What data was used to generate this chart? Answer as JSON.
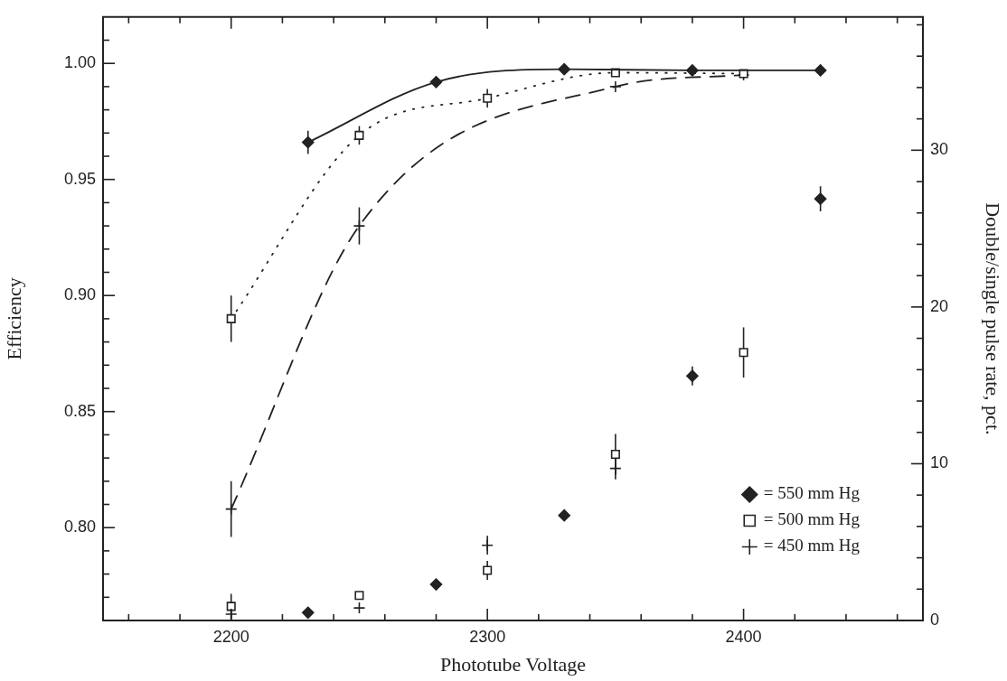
{
  "chart_data": {
    "type": "line",
    "xlabel": "Phototube Voltage",
    "ylabel": "Efficiency",
    "y2label": "Double/single pulse rate, pct.",
    "xlim": [
      2150,
      2470
    ],
    "xticks": [
      {
        "value": 2160,
        "label": null
      },
      {
        "value": 2180,
        "label": null
      },
      2200,
      {
        "value": 2220,
        "label": null
      },
      {
        "value": 2240,
        "label": null
      },
      {
        "value": 2260,
        "label": null
      },
      {
        "value": 2280,
        "label": null
      },
      2300,
      {
        "value": 2320,
        "label": null
      },
      {
        "value": 2340,
        "label": null
      },
      {
        "value": 2360,
        "label": null
      },
      {
        "value": 2380,
        "label": null
      },
      2400,
      {
        "value": 2420,
        "label": null
      },
      {
        "value": 2440,
        "label": null
      },
      {
        "value": 2460,
        "label": null
      }
    ],
    "ylim": [
      0.76,
      1.02
    ],
    "yticks": [
      {
        "value": 0.77,
        "label": null
      },
      {
        "value": 0.78,
        "label": null
      },
      {
        "value": 0.79,
        "label": null
      },
      {
        "value": 0.8,
        "label": "0.80"
      },
      {
        "value": 0.81,
        "label": null
      },
      {
        "value": 0.82,
        "label": null
      },
      {
        "value": 0.83,
        "label": null
      },
      {
        "value": 0.84,
        "label": null
      },
      0.85,
      {
        "value": 0.86,
        "label": null
      },
      {
        "value": 0.87,
        "label": null
      },
      {
        "value": 0.88,
        "label": null
      },
      {
        "value": 0.89,
        "label": null
      },
      {
        "value": 0.9,
        "label": "0.90"
      },
      {
        "value": 0.91,
        "label": null
      },
      {
        "value": 0.92,
        "label": null
      },
      {
        "value": 0.93,
        "label": null
      },
      {
        "value": 0.94,
        "label": null
      },
      0.95,
      {
        "value": 0.96,
        "label": null
      },
      {
        "value": 0.97,
        "label": null
      },
      {
        "value": 0.98,
        "label": null
      },
      {
        "value": 0.99,
        "label": null
      },
      {
        "value": 1,
        "label": "1.00"
      },
      {
        "value": 1.01,
        "label": null
      }
    ],
    "y2lim": [
      0,
      38.5
    ],
    "y2ticks": [
      0,
      {
        "value": 2,
        "label": null
      },
      {
        "value": 4,
        "label": null
      },
      {
        "value": 6,
        "label": null
      },
      {
        "value": 8,
        "label": null
      },
      10,
      {
        "value": 12,
        "label": null
      },
      {
        "value": 14,
        "label": null
      },
      {
        "value": 16,
        "label": null
      },
      {
        "value": 18,
        "label": null
      },
      20,
      {
        "value": 22,
        "label": null
      },
      {
        "value": 24,
        "label": null
      },
      {
        "value": 26,
        "label": null
      },
      {
        "value": 28,
        "label": null
      },
      30,
      {
        "value": 32,
        "label": null
      },
      {
        "value": 34,
        "label": null
      },
      {
        "value": 36,
        "label": null
      },
      {
        "value": 38,
        "label": null
      }
    ],
    "legend": "bottom right",
    "series": [
      {
        "name": "= 550 mm Hg",
        "color": "#222222",
        "marker": "diamond",
        "line_style": "solid",
        "x": [
          2230,
          2280,
          2330,
          2380,
          2430
        ],
        "values": [
          0.966,
          0.992,
          0.9975,
          0.997,
          0.997
        ],
        "errors": [
          0.005,
          null,
          null,
          null,
          null
        ]
      },
      {
        "name": "= 500 mm Hg",
        "color": "#222222",
        "marker": "square",
        "line_style": "dotted",
        "x": [
          2200,
          2250,
          2300,
          2350,
          2400
        ],
        "values": [
          0.89,
          0.969,
          0.985,
          0.996,
          0.9956
        ],
        "errors": [
          0.01,
          0.004,
          0.004,
          null,
          null
        ]
      },
      {
        "name": "= 450 mm Hg",
        "color": "#222222",
        "marker": "cross",
        "line_style": "dashed",
        "x": [
          2200,
          2250,
          2300,
          2350,
          2400
        ],
        "values": [
          0.808,
          0.93,
          null,
          0.99,
          0.995
        ],
        "errors": [
          0.012,
          0.008,
          null,
          null,
          null
        ]
      },
      {
        "type": "scatter",
        "axis": "y2",
        "color": "#222222",
        "marker": "diamond",
        "x": [
          2230,
          2280,
          2330,
          2380,
          2430
        ],
        "values": [
          0.5,
          2.3,
          6.7,
          15.6,
          26.9
        ],
        "errors": [
          null,
          null,
          null,
          0.6,
          0.8
        ]
      },
      {
        "type": "scatter",
        "axis": "y2",
        "color": "#222222",
        "marker": "square",
        "x": [
          2200,
          2250,
          2300,
          2350,
          2400
        ],
        "values": [
          0.9,
          1.6,
          3.2,
          10.6,
          17.1
        ],
        "errors": [
          0.8,
          null,
          0.6,
          1.3,
          1.6
        ]
      },
      {
        "type": "scatter",
        "axis": "y2",
        "color": "#222222",
        "marker": "cross",
        "x": [
          2200,
          2250,
          2300,
          2350
        ],
        "values": [
          0.4,
          0.8,
          4.8,
          9.7
        ],
        "errors": [
          null,
          null,
          0.6,
          0.7
        ]
      }
    ]
  }
}
